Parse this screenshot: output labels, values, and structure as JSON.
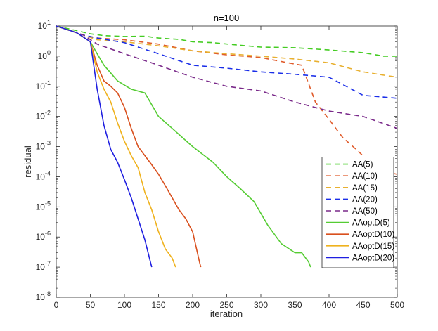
{
  "chart_data": {
    "type": "line",
    "title": "n=100",
    "xlabel": "iteration",
    "ylabel": "residual",
    "x_scale": "linear",
    "y_scale": "log",
    "xlim": [
      0,
      500
    ],
    "ylim_exponents": [
      -8,
      1
    ],
    "x_ticks": [
      0,
      50,
      100,
      150,
      200,
      250,
      300,
      350,
      400,
      450,
      500
    ],
    "y_tick_exponents": [
      -8,
      -7,
      -6,
      -5,
      -4,
      -3,
      -2,
      -1,
      0,
      1
    ],
    "y_tick_base": "10",
    "grid": false,
    "legend_position": "bottom-right",
    "series": [
      {
        "name": "AA(5)",
        "color": "#44cc22",
        "dash": "dashed",
        "x": [
          0,
          30,
          50,
          70,
          100,
          130,
          150,
          180,
          200,
          230,
          260,
          300,
          350,
          400,
          450,
          480,
          500
        ],
        "y": [
          10,
          7,
          5.5,
          4.8,
          4.5,
          4.6,
          4.0,
          3.6,
          3.0,
          2.8,
          2.4,
          2.0,
          1.9,
          1.6,
          1.3,
          1.0,
          1.0
        ]
      },
      {
        "name": "AA(10)",
        "color": "#e05c2c",
        "dash": "dashed",
        "x": [
          0,
          40,
          60,
          100,
          150,
          200,
          250,
          300,
          340,
          360,
          380,
          400,
          420,
          440,
          460,
          480,
          500
        ],
        "y": [
          10,
          5,
          4,
          3.5,
          2.5,
          1.5,
          1.1,
          0.9,
          0.6,
          0.5,
          0.03,
          0.008,
          0.002,
          0.0008,
          0.0003,
          0.00015,
          0.00012
        ]
      },
      {
        "name": "AA(15)",
        "color": "#e8b030",
        "dash": "dashed",
        "x": [
          0,
          40,
          60,
          100,
          150,
          200,
          250,
          300,
          350,
          400,
          450,
          500
        ],
        "y": [
          10,
          5,
          3.5,
          3.0,
          2.2,
          1.5,
          1.2,
          1.0,
          0.8,
          0.6,
          0.3,
          0.2
        ]
      },
      {
        "name": "AA(20)",
        "color": "#1a2ee8",
        "dash": "dashed",
        "x": [
          0,
          40,
          60,
          100,
          150,
          200,
          250,
          300,
          350,
          400,
          450,
          500
        ],
        "y": [
          10,
          5,
          4,
          2.8,
          1.2,
          0.5,
          0.4,
          0.3,
          0.25,
          0.2,
          0.05,
          0.04
        ]
      },
      {
        "name": "AA(50)",
        "color": "#7a2a8a",
        "dash": "dashed",
        "x": [
          0,
          40,
          60,
          100,
          150,
          200,
          250,
          300,
          350,
          400,
          450,
          500
        ],
        "y": [
          10,
          5,
          2.5,
          1.2,
          0.5,
          0.2,
          0.1,
          0.07,
          0.03,
          0.015,
          0.01,
          0.004
        ]
      },
      {
        "name": "AAoptD(5)",
        "color": "#55cc33",
        "dash": "solid",
        "x": [
          0,
          30,
          50,
          60,
          70,
          90,
          110,
          130,
          150,
          170,
          200,
          230,
          250,
          270,
          290,
          310,
          330,
          350,
          360,
          370,
          373
        ],
        "y": [
          10,
          6,
          3,
          1.2,
          0.5,
          0.15,
          0.08,
          0.06,
          0.01,
          0.004,
          0.001,
          0.0003,
          0.0001,
          4e-05,
          1.5e-05,
          2.5e-06,
          6e-07,
          3e-07,
          3e-07,
          1.5e-07,
          1e-07
        ]
      },
      {
        "name": "AAoptD(10)",
        "color": "#d9501e",
        "dash": "solid",
        "x": [
          0,
          30,
          50,
          60,
          70,
          80,
          90,
          100,
          110,
          120,
          130,
          140,
          150,
          160,
          170,
          180,
          190,
          200,
          210,
          212
        ],
        "y": [
          10,
          6,
          3,
          0.5,
          0.15,
          0.1,
          0.06,
          0.02,
          0.004,
          0.001,
          0.0005,
          0.00025,
          0.00012,
          5e-05,
          2e-05,
          8e-06,
          4e-06,
          1.5e-06,
          1.5e-07,
          1e-07
        ]
      },
      {
        "name": "AAoptD(15)",
        "color": "#efb21e",
        "dash": "solid",
        "x": [
          0,
          30,
          50,
          60,
          70,
          80,
          90,
          100,
          110,
          120,
          130,
          140,
          150,
          160,
          170,
          175
        ],
        "y": [
          10,
          6,
          3,
          0.3,
          0.08,
          0.03,
          0.006,
          0.0015,
          0.0005,
          0.0002,
          3e-05,
          8e-06,
          1.5e-06,
          4e-07,
          2e-07,
          1e-07
        ]
      },
      {
        "name": "AAoptD(20)",
        "color": "#1f1fe0",
        "dash": "solid",
        "x": [
          0,
          30,
          50,
          55,
          60,
          65,
          70,
          80,
          90,
          100,
          110,
          120,
          130,
          140
        ],
        "y": [
          10,
          6,
          3,
          0.5,
          0.08,
          0.02,
          0.005,
          0.0008,
          0.0003,
          8e-05,
          2e-05,
          4e-06,
          8e-07,
          1e-07
        ]
      }
    ]
  }
}
